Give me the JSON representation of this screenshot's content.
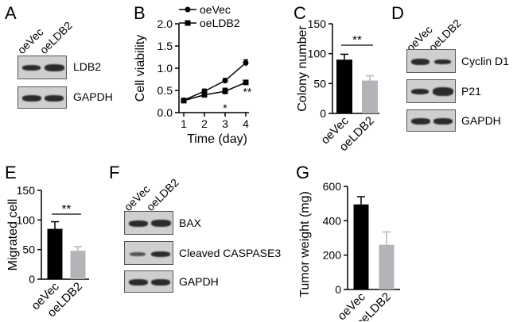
{
  "panels": {
    "A": {
      "letter": "A",
      "lanes": [
        "oeVec",
        "oeLDB2"
      ],
      "blots": [
        "LDB2",
        "GAPDH"
      ]
    },
    "B": {
      "letter": "B"
    },
    "C": {
      "letter": "C"
    },
    "D": {
      "letter": "D",
      "lanes": [
        "oeVec",
        "oeLDB2"
      ],
      "blots": [
        "Cyclin D1",
        "P21",
        "GAPDH"
      ]
    },
    "E": {
      "letter": "E"
    },
    "F": {
      "letter": "F",
      "lanes": [
        "oeVec",
        "oeLDB2"
      ],
      "blots": [
        "BAX",
        "Cleaved CASPASE3",
        "GAPDH"
      ]
    },
    "G": {
      "letter": "G"
    }
  },
  "colors": {
    "black_bar": "#000000",
    "grey_bar": "#b4b4b8",
    "axis": "#000000"
  },
  "chart_data": [
    {
      "id": "B",
      "type": "line",
      "xlabel": "Time (day)",
      "ylabel": "Cell viability",
      "x": [
        1,
        2,
        3,
        4
      ],
      "xticks": [
        "1",
        "2",
        "3",
        "4"
      ],
      "yticks": [
        "0.0",
        "0.5",
        "1.0",
        "1.5",
        "2.0"
      ],
      "ylim": [
        0,
        2.0
      ],
      "series": [
        {
          "name": "oeVec",
          "marker": "circle",
          "values": [
            0.28,
            0.48,
            0.72,
            1.12
          ],
          "errors": [
            0.03,
            0.05,
            0.05,
            0.07
          ]
        },
        {
          "name": "oeLDB2",
          "marker": "square",
          "values": [
            0.27,
            0.4,
            0.48,
            0.68
          ],
          "errors": [
            0.03,
            0.05,
            0.07,
            0.05
          ]
        }
      ],
      "annotations": [
        {
          "x": 3,
          "text": "*"
        },
        {
          "x": 4,
          "text": "**"
        }
      ]
    },
    {
      "id": "C",
      "type": "bar",
      "ylabel": "Colony number",
      "categories": [
        "oeVec",
        "oeLDB2"
      ],
      "values": [
        90,
        55
      ],
      "errors": [
        9,
        8
      ],
      "yticks": [
        "0",
        "50",
        "100",
        "150"
      ],
      "ylim": [
        0,
        150
      ],
      "significance": "**"
    },
    {
      "id": "E",
      "type": "bar",
      "ylabel": "Migrated cell",
      "categories": [
        "oeVec",
        "oeLDB2"
      ],
      "values": [
        85,
        48
      ],
      "errors": [
        12,
        7
      ],
      "yticks": [
        "0",
        "50",
        "100",
        "150"
      ],
      "ylim": [
        0,
        150
      ],
      "significance": "**"
    },
    {
      "id": "G",
      "type": "bar",
      "ylabel": "Tumor weight (mg)",
      "categories": [
        "oeVec",
        "oeLDB2"
      ],
      "values": [
        495,
        260
      ],
      "errors": [
        45,
        75
      ],
      "yticks": [
        "0",
        "200",
        "400",
        "600"
      ],
      "ylim": [
        0,
        600
      ]
    }
  ]
}
